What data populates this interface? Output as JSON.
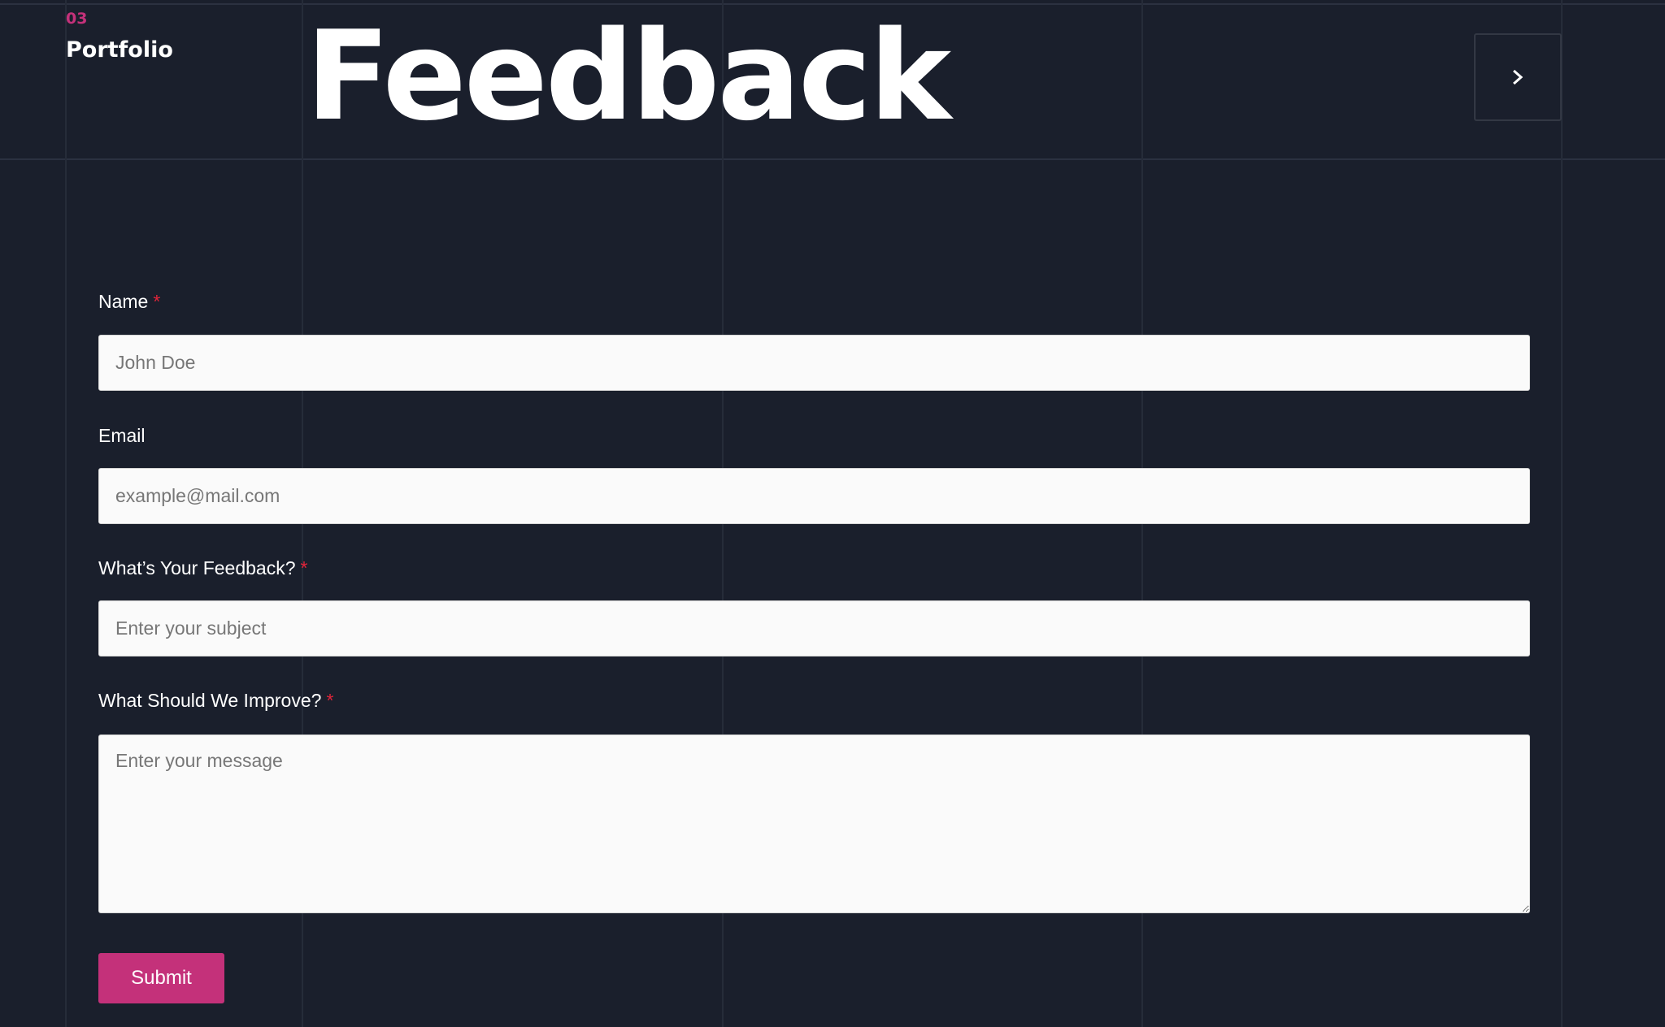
{
  "header": {
    "section_number": "03",
    "brand": "Portfolio",
    "title": "Feedback",
    "next_icon": "chevron-right-icon"
  },
  "form": {
    "name": {
      "label": "Name",
      "required_mark": "*",
      "placeholder": "John Doe",
      "value": ""
    },
    "email": {
      "label": "Email",
      "placeholder": "example@mail.com",
      "value": ""
    },
    "feedback": {
      "label": "What’s Your Feedback?",
      "required_mark": "*",
      "placeholder": "Enter your subject",
      "value": ""
    },
    "improve": {
      "label": "What Should We Improve?",
      "required_mark": "*",
      "placeholder": "Enter your message",
      "value": ""
    },
    "submit_label": "Submit"
  },
  "colors": {
    "background": "#1a1f2c",
    "accent": "#c4317a",
    "required": "#e0243a"
  }
}
